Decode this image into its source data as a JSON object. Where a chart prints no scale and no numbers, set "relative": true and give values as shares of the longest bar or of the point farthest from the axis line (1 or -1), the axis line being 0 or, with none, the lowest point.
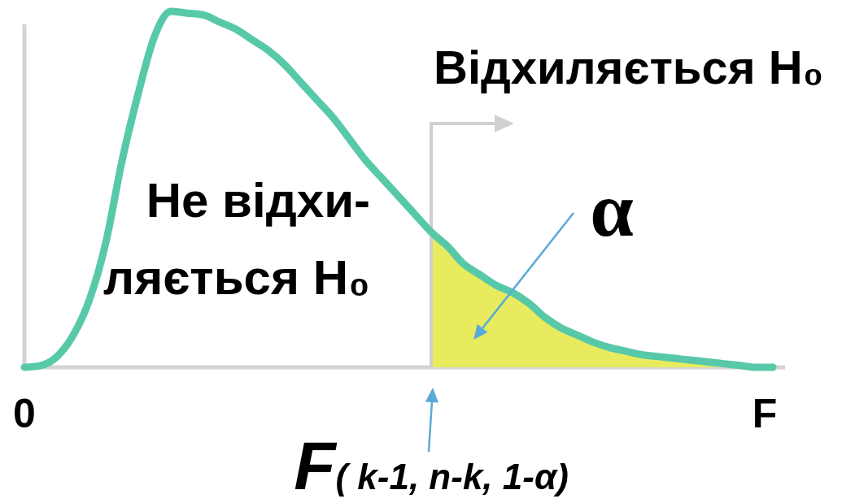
{
  "chart_data": {
    "type": "line",
    "relative": true,
    "categories": [
      "0",
      null,
      null,
      null,
      null,
      null,
      null,
      null,
      null,
      null,
      null,
      null,
      null,
      null,
      null,
      null,
      null,
      null,
      null,
      null,
      null,
      null,
      null,
      null,
      null,
      "F( k-1, n-k, 1-α)",
      null,
      null,
      null,
      null,
      null,
      null,
      null,
      null,
      null,
      null,
      null,
      null,
      null,
      null,
      null,
      null,
      null,
      null,
      null,
      null,
      null
    ],
    "xlabel": "F",
    "series": [
      {
        "type": "area",
        "color": "#e9eb5e",
        "values": [
          null,
          null,
          null,
          null,
          null,
          null,
          null,
          null,
          null,
          null,
          null,
          null,
          null,
          null,
          null,
          null,
          null,
          null,
          null,
          null,
          null,
          null,
          null,
          null,
          null,
          0.38,
          0.34,
          0.29,
          0.26,
          0.23,
          0.21,
          0.18,
          0.14,
          0.11,
          0.09,
          0.07,
          0.055,
          0.045,
          0.035,
          0.03,
          0.025,
          0.02,
          0.015,
          0.01,
          0.005,
          0,
          0
        ]
      },
      {
        "color": "#57c9a9",
        "values": [
          0,
          0.005,
          0.03,
          0.09,
          0.19,
          0.35,
          0.58,
          0.77,
          0.93,
          1,
          0.995,
          0.99,
          0.97,
          0.95,
          0.92,
          0.89,
          0.85,
          0.8,
          0.75,
          0.7,
          0.64,
          0.58,
          0.53,
          0.48,
          0.43,
          0.38,
          0.34,
          0.29,
          0.26,
          0.23,
          0.21,
          0.18,
          0.14,
          0.11,
          0.09,
          0.07,
          0.055,
          0.045,
          0.035,
          0.03,
          0.025,
          0.02,
          0.015,
          0.01,
          0.005,
          0,
          0
        ]
      }
    ],
    "ref_lines": [
      {
        "axis": "x",
        "value": "F( k-1, n-k, 1-α)",
        "label": "Відхиляється H₀",
        "color": "#d0d0d0"
      }
    ],
    "annotations": [
      "Не відхи-\nляється H₀",
      "α"
    ]
  }
}
